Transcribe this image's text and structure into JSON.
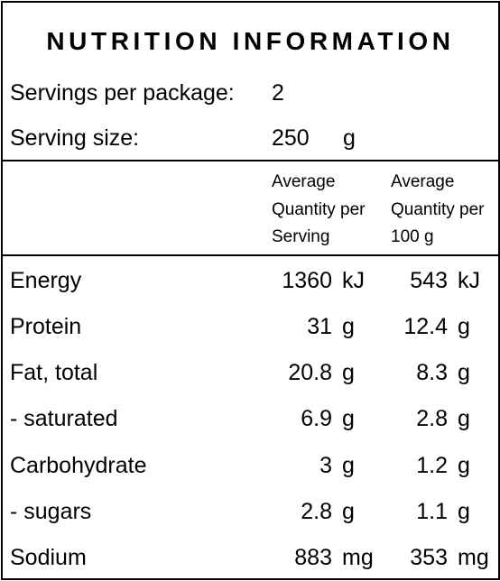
{
  "panel": {
    "title": "NUTRITION INFORMATION",
    "servings_label": "Servings per package:",
    "servings_value": "2",
    "serving_size_label": "Serving size:",
    "serving_size_value": "250",
    "serving_size_unit": "g"
  },
  "columns": {
    "per_serving": [
      "Average",
      "Quantity per",
      "Serving"
    ],
    "per_100g": [
      "Average",
      "Quantity per",
      "100 g"
    ]
  },
  "rows": [
    {
      "name": "Energy",
      "per_serving": "1360",
      "per_serving_unit": "kJ",
      "per_100g": "543",
      "per_100g_unit": "kJ"
    },
    {
      "name": "Protein",
      "per_serving": "31",
      "per_serving_unit": "g",
      "per_100g": "12.4",
      "per_100g_unit": "g"
    },
    {
      "name": "Fat, total",
      "per_serving": "20.8",
      "per_serving_unit": "g",
      "per_100g": "8.3",
      "per_100g_unit": "g"
    },
    {
      "name": "- saturated",
      "per_serving": "6.9",
      "per_serving_unit": "g",
      "per_100g": "2.8",
      "per_100g_unit": "g"
    },
    {
      "name": "Carbohydrate",
      "per_serving": "3",
      "per_serving_unit": "g",
      "per_100g": "1.2",
      "per_100g_unit": "g"
    },
    {
      "name": "- sugars",
      "per_serving": "2.8",
      "per_serving_unit": "g",
      "per_100g": "1.1",
      "per_100g_unit": "g"
    },
    {
      "name": "Sodium",
      "per_serving": "883",
      "per_serving_unit": "mg",
      "per_100g": "353",
      "per_100g_unit": "mg"
    }
  ]
}
